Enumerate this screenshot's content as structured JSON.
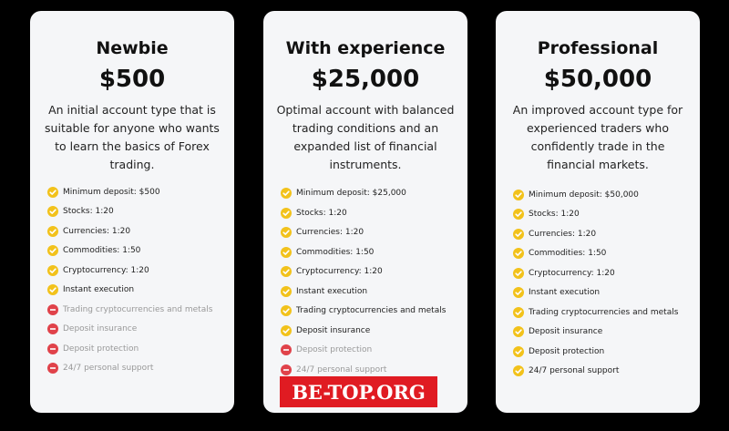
{
  "cards": [
    {
      "title": "Newbie",
      "price": "$500",
      "description": "An initial account type that is suitable for anyone who wants to learn the basics of Forex trading.",
      "features": [
        {
          "text": "Minimum deposit: $500",
          "included": true
        },
        {
          "text": "Stocks: 1:20",
          "included": true
        },
        {
          "text": "Currencies: 1:20",
          "included": true
        },
        {
          "text": "Commodities: 1:50",
          "included": true
        },
        {
          "text": "Cryptocurrency: 1:20",
          "included": true
        },
        {
          "text": "Instant execution",
          "included": true
        },
        {
          "text": "Trading cryptocurrencies and metals",
          "included": false
        },
        {
          "text": "Deposit insurance",
          "included": false
        },
        {
          "text": "Deposit protection",
          "included": false
        },
        {
          "text": "24/7 personal support",
          "included": false
        }
      ]
    },
    {
      "title": "With experience",
      "price": "$25,000",
      "description": "Optimal account with balanced trading conditions and an expanded list of financial instruments.",
      "features": [
        {
          "text": "Minimum deposit: $25,000",
          "included": true
        },
        {
          "text": "Stocks: 1:20",
          "included": true
        },
        {
          "text": "Currencies: 1:20",
          "included": true
        },
        {
          "text": "Commodities: 1:50",
          "included": true
        },
        {
          "text": "Cryptocurrency: 1:20",
          "included": true
        },
        {
          "text": "Instant execution",
          "included": true
        },
        {
          "text": "Trading cryptocurrencies and metals",
          "included": true
        },
        {
          "text": "Deposit insurance",
          "included": true
        },
        {
          "text": "Deposit protection",
          "included": false
        },
        {
          "text": "24/7 personal support",
          "included": false
        }
      ]
    },
    {
      "title": "Professional",
      "price": "$50,000",
      "description": "An improved account type for experienced traders who confidently trade in the financial markets.",
      "features": [
        {
          "text": "Minimum deposit: $50,000",
          "included": true
        },
        {
          "text": "Stocks: 1:20",
          "included": true
        },
        {
          "text": "Currencies: 1:20",
          "included": true
        },
        {
          "text": "Commodities: 1:50",
          "included": true
        },
        {
          "text": "Cryptocurrency: 1:20",
          "included": true
        },
        {
          "text": "Instant execution",
          "included": true
        },
        {
          "text": "Trading cryptocurrencies and metals",
          "included": true
        },
        {
          "text": "Deposit insurance",
          "included": true
        },
        {
          "text": "Deposit protection",
          "included": true
        },
        {
          "text": "24/7 personal support",
          "included": true
        }
      ]
    }
  ],
  "watermark": "BE-TOP.ORG"
}
